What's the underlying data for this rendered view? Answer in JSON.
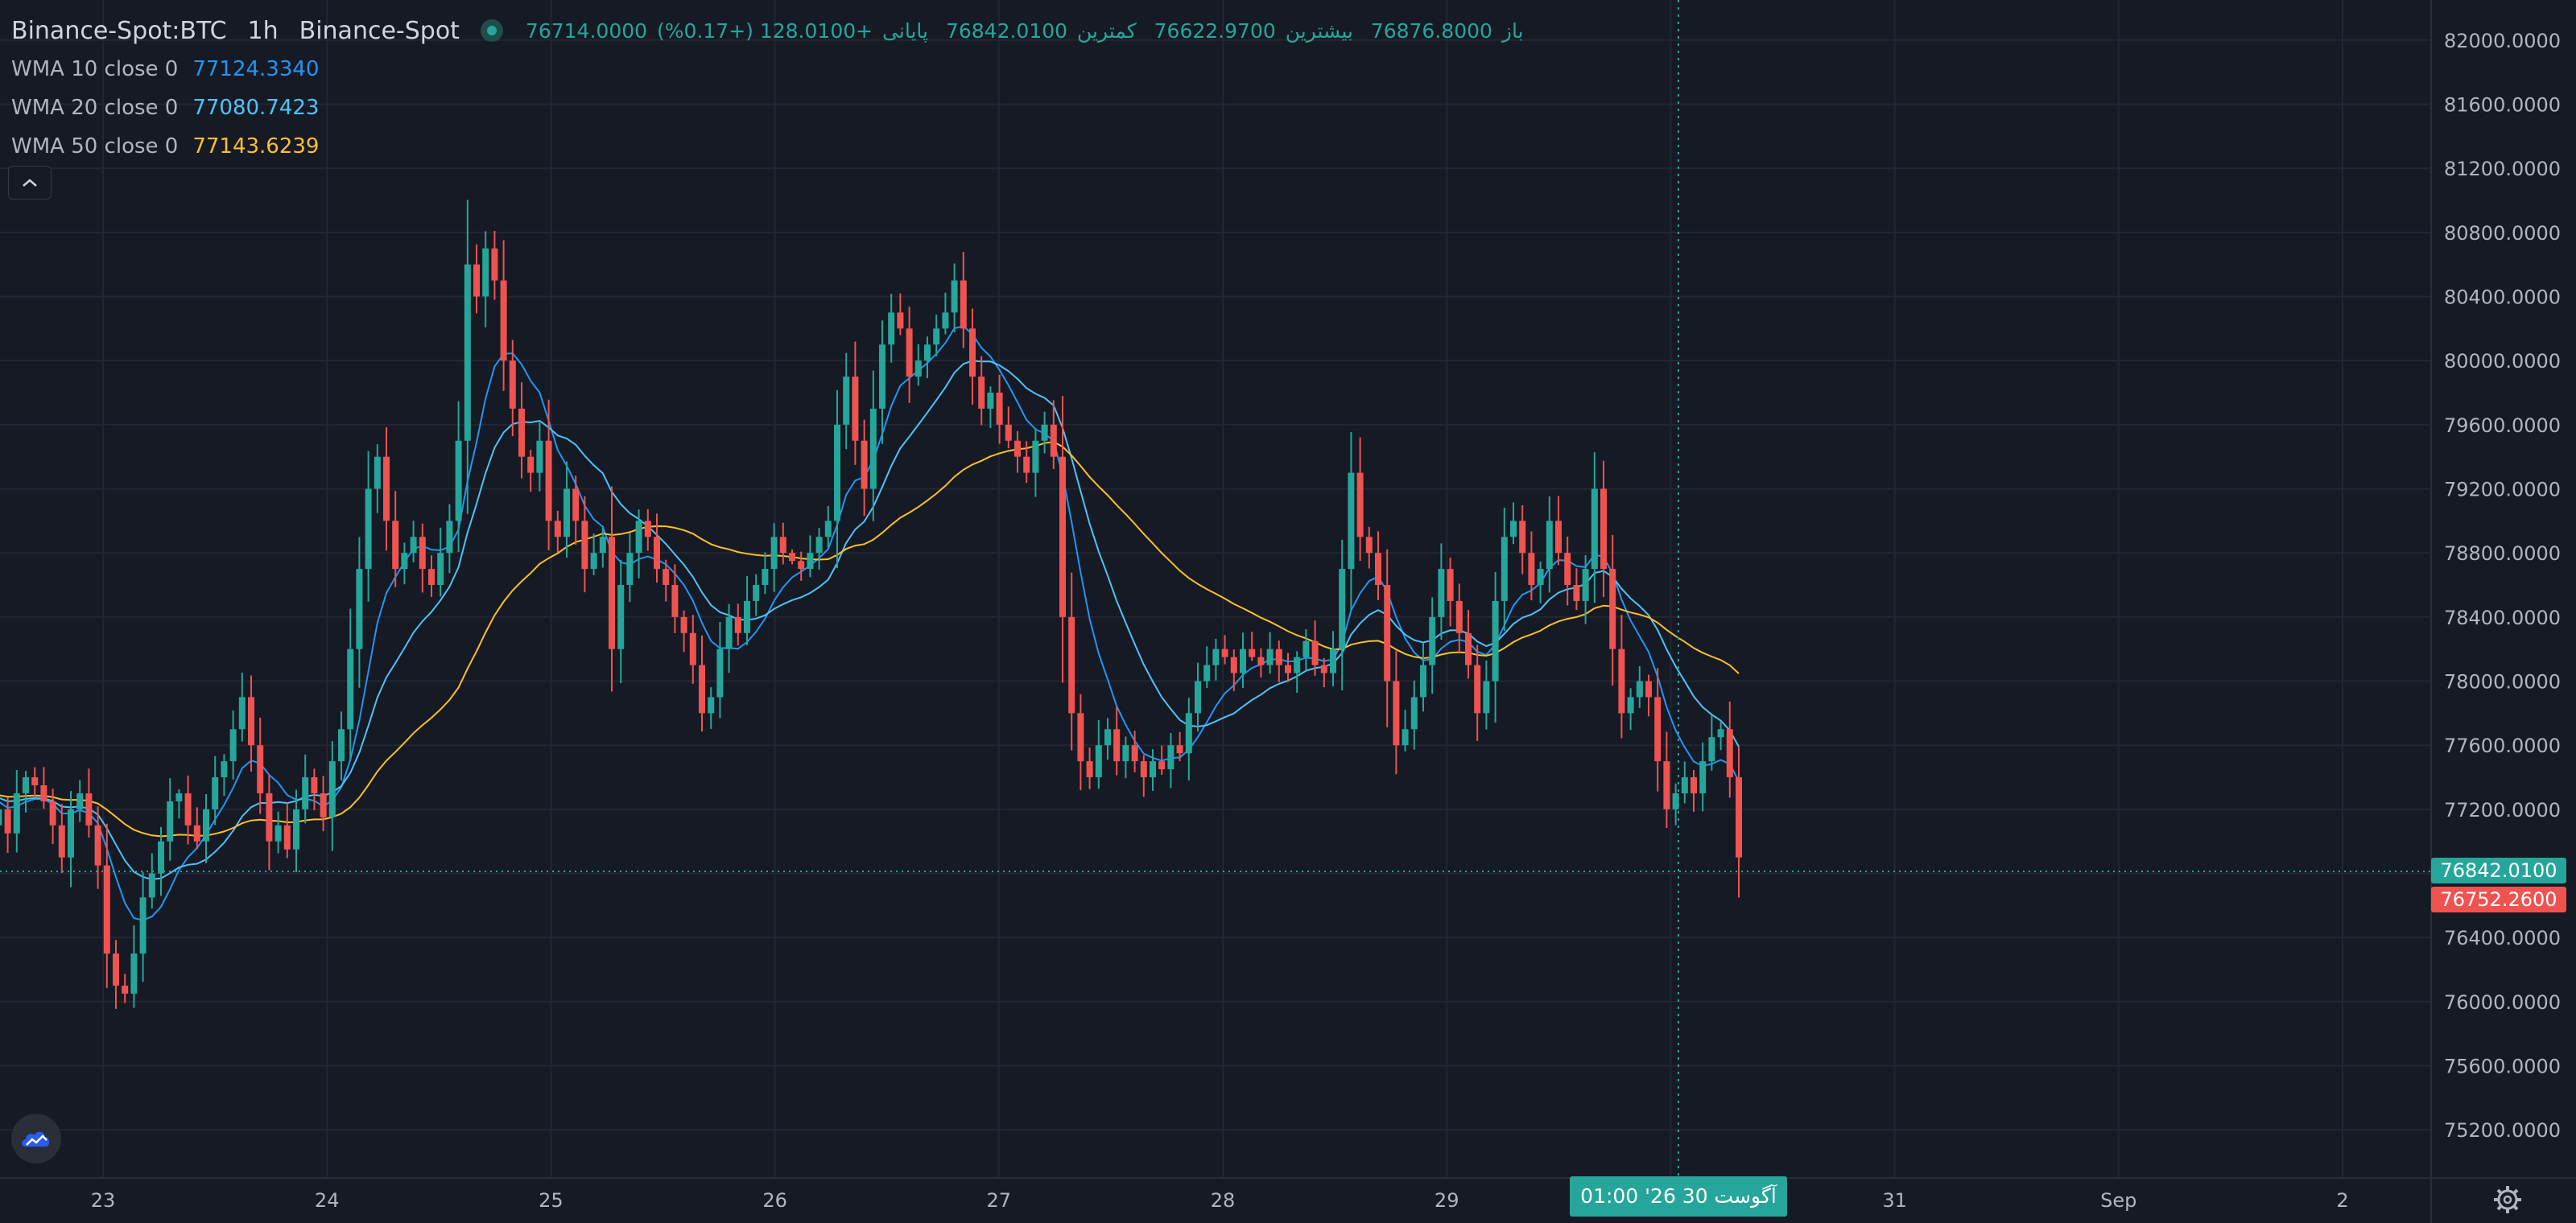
{
  "header": {
    "symbol": "Binance-Spot:BTC",
    "interval": "1h",
    "exchange": "Binance-Spot",
    "open_label": "باز",
    "open_value": "76714.0000",
    "high_label": "بیشترین",
    "high_value": "76876.8000",
    "low_label": "کمترین",
    "low_value": "76622.9700",
    "close_label": "پایانی",
    "close_value": "76842.0100",
    "change": "+128.0100 (+0.17%)"
  },
  "indicators": [
    {
      "name": "WMA",
      "params": "10 close 0",
      "value": "77124.3340",
      "color": "#2196f3"
    },
    {
      "name": "WMA",
      "params": "20 close 0",
      "value": "77080.7423",
      "color": "#4fc3f7"
    },
    {
      "name": "WMA",
      "params": "50 close 0",
      "value": "77143.6239",
      "color": "#fbc02d"
    }
  ],
  "price_tags": {
    "last": "76842.0100",
    "last_color": "#26a69a",
    "secondary": "76752.2600",
    "secondary_color": "#ef5350"
  },
  "crosshair": {
    "time_label": "01:00  '26 آگوست 30"
  },
  "icons": {
    "logo": "tradingview-cloud-icon",
    "collapse": "chevron-up-icon",
    "settings": "gear-icon"
  },
  "chart_data": {
    "type": "candlestick",
    "timeframe": "1h",
    "ylim": [
      74900,
      82250
    ],
    "y_ticks": [
      75200,
      75600,
      76000,
      76400,
      76800,
      77200,
      77600,
      78000,
      78400,
      78800,
      79200,
      79600,
      80000,
      80400,
      80800,
      81200,
      81600,
      82000
    ],
    "y_tick_labels": [
      "75200.0000",
      "75600.0000",
      "76000.0000",
      "76400.0000",
      "76800.0000",
      "77200.0000",
      "77600.0000",
      "78000.0000",
      "78400.0000",
      "78800.0000",
      "79200.0000",
      "79600.0000",
      "80000.0000",
      "80400.0000",
      "80800.0000",
      "81200.0000",
      "81600.0000",
      "82000.0000"
    ],
    "x_ticks": [
      "23",
      "24",
      "25",
      "26",
      "27",
      "28",
      "29",
      "30",
      "31",
      "Sep",
      "2"
    ],
    "up_color": "#26a69a",
    "down_color": "#ef5350",
    "candle_closes": [
      77300,
      77100,
      77200,
      77050,
      77300,
      77400,
      77350,
      77250,
      77100,
      76900,
      77200,
      77300,
      77100,
      76850,
      76300,
      76100,
      76050,
      76300,
      76650,
      76800,
      77000,
      77250,
      77300,
      77100,
      77000,
      77200,
      77400,
      77500,
      77700,
      77900,
      77600,
      77300,
      77000,
      77100,
      76950,
      77200,
      77400,
      77300,
      77150,
      77500,
      77700,
      78200,
      78700,
      79200,
      79400,
      79000,
      78700,
      78800,
      78900,
      78700,
      78600,
      78800,
      79000,
      79500,
      80600,
      80400,
      80700,
      80500,
      80000,
      79700,
      79400,
      79300,
      79500,
      79000,
      78900,
      79200,
      79000,
      78700,
      78800,
      78900,
      78200,
      78600,
      78800,
      79000,
      78900,
      78700,
      78600,
      78400,
      78300,
      78100,
      77800,
      77900,
      78200,
      78400,
      78300,
      78500,
      78600,
      78700,
      78900,
      78800,
      78750,
      78700,
      78800,
      78900,
      79000,
      79600,
      79900,
      79500,
      79200,
      79700,
      80100,
      80300,
      80200,
      79900,
      80000,
      80100,
      80200,
      80300,
      80500,
      80200,
      79900,
      79700,
      79800,
      79600,
      79500,
      79400,
      79300,
      79500,
      79600,
      79400,
      78400,
      77800,
      77500,
      77400,
      77600,
      77700,
      77500,
      77600,
      77500,
      77400,
      77500,
      77450,
      77600,
      77550,
      77800,
      78000,
      78100,
      78200,
      78150,
      78050,
      78200,
      78150,
      78100,
      78200,
      78100,
      78050,
      78150,
      78250,
      78100,
      78050,
      78200,
      78700,
      79300,
      78900,
      78800,
      78600,
      78000,
      77600,
      77700,
      77900,
      78100,
      78400,
      78700,
      78500,
      78300,
      78100,
      77800,
      78000,
      78500,
      78900,
      79000,
      78800,
      78600,
      78700,
      79000,
      78800,
      78600,
      78500,
      78700,
      79200,
      78700,
      78200,
      77800,
      77900,
      78000,
      77900,
      77500,
      77200,
      77300,
      77400,
      77300,
      77500,
      77650,
      77700,
      77400,
      76900
    ],
    "series": [
      {
        "name": "WMA 10 close 0",
        "color": "#2196f3",
        "last_value": 77124.334
      },
      {
        "name": "WMA 20 close 0",
        "color": "#4fc3f7",
        "last_value": 77080.7423
      },
      {
        "name": "WMA 50 close 0",
        "color": "#fbc02d",
        "last_value": 77143.6239
      }
    ],
    "grid": true
  }
}
